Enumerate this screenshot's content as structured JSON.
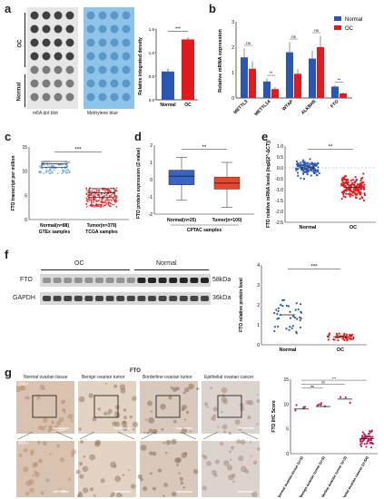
{
  "panels": {
    "a": "a",
    "b": "b",
    "c": "c",
    "d": "d",
    "e": "e",
    "f": "f",
    "g": "g"
  },
  "panel_a": {
    "side_labels": [
      "OC",
      "Normal"
    ],
    "blot_captions": [
      "m6A dot blot",
      "Methylene blue"
    ],
    "bar": {
      "ylabel": "Relative integrated density",
      "categories": [
        "Normal",
        "OC"
      ],
      "values": [
        0.6,
        1.28
      ],
      "errors": [
        0.06,
        0.04
      ],
      "yticks": [
        "0.0",
        "0.5",
        "1.0",
        "1.5"
      ],
      "ylim": [
        0,
        1.5
      ],
      "colors": [
        "#2b57b4",
        "#e31a1c"
      ],
      "sig": "***"
    }
  },
  "chart_data": [
    {
      "type": "bar",
      "title": "",
      "ylabel": "Relative mRNA expression",
      "categories": [
        "METTL3",
        "METTL14",
        "WTAP",
        "ALKBH5",
        "FTO"
      ],
      "series": [
        {
          "name": "Normal",
          "values": [
            1.6,
            0.65,
            1.8,
            1.55,
            0.45
          ],
          "errors": [
            0.35,
            0.12,
            0.4,
            0.3,
            0.06
          ]
        },
        {
          "name": "OC",
          "values": [
            1.15,
            0.35,
            0.95,
            2.0,
            0.18
          ],
          "errors": [
            0.3,
            0.08,
            0.2,
            0.45,
            0.04
          ]
        }
      ],
      "sig": [
        "ns",
        "**",
        "ns",
        "ns",
        "**"
      ],
      "yticks": [
        "0",
        "1",
        "2",
        "3"
      ],
      "ylim": [
        0,
        3
      ],
      "legend": "top-right",
      "colors": [
        "#2b57b4",
        "#e31a1c"
      ]
    },
    {
      "type": "box",
      "ylabel": "FTO transcript per million",
      "categories": [
        "Normal(n=88)",
        "Tumor(n=379)"
      ],
      "sub_xlabels": [
        "GTEx samples",
        "TCGA samples"
      ],
      "median": [
        11.5,
        5.5
      ],
      "q1": [
        10.8,
        4.6
      ],
      "q3": [
        12.0,
        6.4
      ],
      "min": [
        9,
        2
      ],
      "max": [
        13.5,
        9.5
      ],
      "yticks": [
        "0",
        "5",
        "10",
        "15"
      ],
      "ylim": [
        0,
        15
      ],
      "colors": [
        "#5aa8d8",
        "#e31a1c"
      ],
      "sig": "***"
    },
    {
      "type": "box",
      "ylabel": "FTO protein expression (Z-value)",
      "categories": [
        "Normal(n=25)",
        "Tumor(n=100)"
      ],
      "xlabel": "CPTAC samples",
      "median": [
        0.2,
        -0.2
      ],
      "q1": [
        -0.3,
        -0.55
      ],
      "q3": [
        0.55,
        0.15
      ],
      "min": [
        -1.2,
        -1.6
      ],
      "max": [
        1.3,
        1.0
      ],
      "yticks": [
        "-2",
        "-1",
        "0",
        "1",
        "2"
      ],
      "ylim": [
        -2,
        2
      ],
      "colors": [
        "#3a63c4",
        "#e8472a"
      ],
      "sig": "**"
    },
    {
      "type": "scatter",
      "ylabel": "FTO relative mRNA levels (log2(2^-ΔCT))",
      "categories": [
        "Normal",
        "OC"
      ],
      "means": [
        0.0,
        -0.9
      ],
      "yticks": [
        "1.0",
        "0.5",
        "0.0",
        "-0.5",
        "-1.0",
        "-1.5",
        "-2.0",
        "-2.5"
      ],
      "ylim": [
        -2.5,
        1.0
      ],
      "colors": [
        "#2b57b4",
        "#e31a1c"
      ],
      "sig": "**"
    },
    {
      "type": "scatter",
      "ylabel": "FTO relative protein level",
      "categories": [
        "Normal",
        "OC"
      ],
      "means": [
        1.5,
        0.4
      ],
      "yticks": [
        "0",
        "1",
        "2",
        "3",
        "4"
      ],
      "ylim": [
        0,
        4
      ],
      "colors": [
        "#2b57b4",
        "#e31a1c"
      ],
      "sig": "***"
    },
    {
      "type": "scatter",
      "ylabel": "FTO IHC Score",
      "categories": [
        "Normal ovarian tissue (n=5)",
        "Benign ovarian tumor (n=5)",
        "Borderline ovarian tumor (n=3)",
        "Epithelial ovarian cancer (n=54)"
      ],
      "means": [
        9,
        9.5,
        11,
        3
      ],
      "yticks": [
        "0",
        "5",
        "10",
        "15"
      ],
      "ylim": [
        0,
        15
      ],
      "colors": [
        "#c2185b",
        "#c2185b",
        "#c2185b",
        "#c2185b"
      ],
      "sig": [
        "ns",
        "ns",
        "***"
      ]
    }
  ],
  "panel_f": {
    "group_labels": [
      "OC",
      "Normal"
    ],
    "row_labels": [
      "FTO",
      "GAPDH"
    ],
    "kda": [
      "58kDa",
      "36kDa"
    ]
  },
  "panel_g": {
    "title": "FTO",
    "columns": [
      "Normal ovarian tissue",
      "Benign ovarian tumor",
      "Borderline ovarian tumor",
      "Epithelial ovarian cancer"
    ],
    "magnifications": [
      "200×",
      "400×"
    ],
    "scale_bars": [
      "100μm",
      "50μm"
    ]
  }
}
